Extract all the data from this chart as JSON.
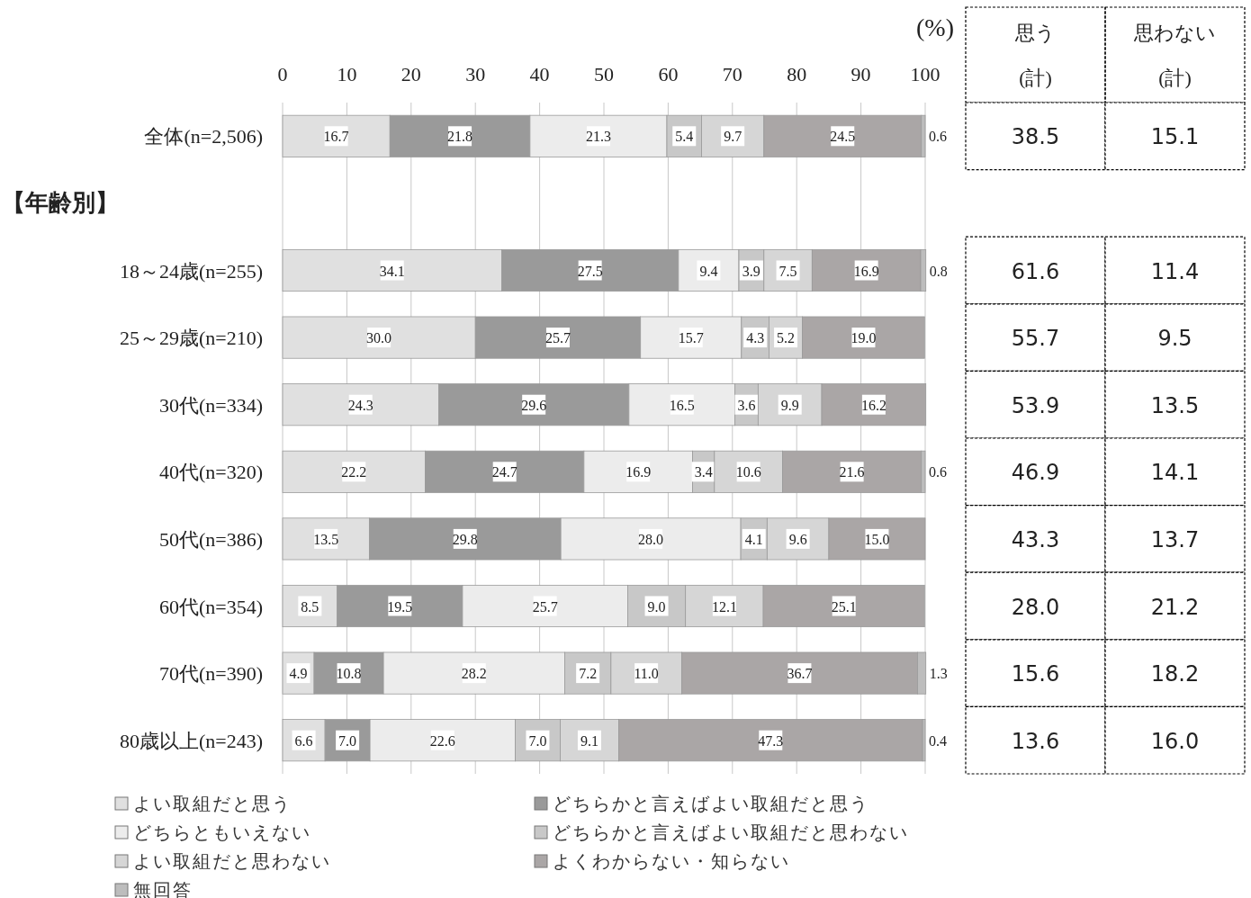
{
  "chart_data": [
    {
      "type": "bar",
      "orientation": "horizontal",
      "stacked": true,
      "xlabel": "(%)",
      "xlim": [
        0,
        100
      ],
      "xticks": [
        0,
        10,
        20,
        30,
        40,
        50,
        60,
        70,
        80,
        90,
        100
      ],
      "grid": "x",
      "legend": "bottom",
      "annotations": [
        "【年齢別】"
      ],
      "categories": [
        "全体(n=2,506)",
        null,
        "18～24歳(n=255)",
        "25～29歳(n=210)",
        "30代(n=334)",
        "40代(n=320)",
        "50代(n=386)",
        "60代(n=354)",
        "70代(n=390)",
        "80歳以上(n=243)"
      ],
      "series": [
        {
          "name": "よい取組だと思う",
          "color": "#e0e0e0",
          "values": [
            16.7,
            null,
            34.1,
            30.0,
            24.3,
            22.2,
            13.5,
            8.5,
            4.9,
            6.6
          ],
          "value_labels": [
            "16.7",
            null,
            "34.1",
            "30.0",
            "24.3",
            "22.2",
            "13.5",
            "8.5",
            "4.9",
            "6.6"
          ]
        },
        {
          "name": "どちらかと言えばよい取組だと思う",
          "color": "#9a9a9a",
          "values": [
            21.8,
            null,
            27.5,
            25.7,
            29.6,
            24.7,
            29.8,
            19.5,
            10.8,
            7.0
          ],
          "value_labels": [
            "21.8",
            null,
            "27.5",
            "25.7",
            "29.6",
            "24.7",
            "29.8",
            "19.5",
            "10.8",
            "7.0"
          ]
        },
        {
          "name": "どちらともいえない",
          "color": "#ececec",
          "values": [
            21.3,
            null,
            9.4,
            15.7,
            16.5,
            16.9,
            28.0,
            25.7,
            28.2,
            22.6
          ],
          "value_labels": [
            "21.3",
            null,
            "9.4",
            "15.7",
            "16.5",
            "16.9",
            "28.0",
            "25.7",
            "28.2",
            "22.6"
          ]
        },
        {
          "name": "どちらかと言えばよい取組だと思わない",
          "color": "#c8c8c8",
          "values": [
            5.4,
            null,
            3.9,
            4.3,
            3.6,
            3.4,
            4.1,
            9.0,
            7.2,
            7.0
          ],
          "value_labels": [
            "5.4",
            null,
            "3.9",
            "4.3",
            "3.6",
            "3.4",
            "4.1",
            "9.0",
            "7.2",
            "7.0"
          ]
        },
        {
          "name": "よい取組だと思わない",
          "color": "#d6d6d6",
          "values": [
            9.7,
            null,
            7.5,
            5.2,
            9.9,
            10.6,
            9.6,
            12.1,
            11.0,
            9.1
          ],
          "value_labels": [
            "9.7",
            null,
            "7.5",
            "5.2",
            "9.9",
            "10.6",
            "9.6",
            "12.1",
            "11.0",
            "9.1"
          ]
        },
        {
          "name": "よくわからない・知らない",
          "color": "#aaa6a6",
          "values": [
            24.5,
            null,
            16.9,
            19.0,
            16.2,
            21.6,
            15.0,
            25.1,
            36.7,
            47.3
          ],
          "value_labels": [
            "24.5",
            null,
            "16.9",
            "19.0",
            "16.2",
            "21.6",
            "15.0",
            "25.1",
            "36.7",
            "47.3"
          ]
        },
        {
          "name": "無回答",
          "color": "#bdbdbd",
          "values": [
            0.6,
            null,
            0.8,
            null,
            null,
            0.6,
            null,
            null,
            1.3,
            0.4
          ],
          "value_labels": [
            "0.6",
            null,
            "0.8",
            null,
            null,
            "0.6",
            null,
            null,
            "1.3",
            "0.4"
          ]
        }
      ]
    },
    {
      "type": "other",
      "annotations": [
        "思う\n(計)",
        "思わない\n(計)",
        "38.5",
        "15.1",
        "61.6",
        "11.4",
        "55.7",
        "9.5",
        "53.9",
        "13.5",
        "46.9",
        "14.1",
        "43.3",
        "13.7",
        "28.0",
        "21.2",
        "15.6",
        "18.2",
        "13.6",
        "16.0"
      ]
    }
  ]
}
